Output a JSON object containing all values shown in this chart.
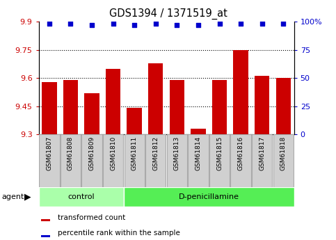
{
  "title": "GDS1394 / 1371519_at",
  "samples": [
    "GSM61807",
    "GSM61808",
    "GSM61809",
    "GSM61810",
    "GSM61811",
    "GSM61812",
    "GSM61813",
    "GSM61814",
    "GSM61815",
    "GSM61816",
    "GSM61817",
    "GSM61818"
  ],
  "transformed_counts": [
    9.58,
    9.59,
    9.52,
    9.65,
    9.44,
    9.68,
    9.59,
    9.33,
    9.59,
    9.75,
    9.61,
    9.6
  ],
  "percentile_ranks": [
    98,
    98,
    97,
    98,
    97,
    98,
    97,
    97,
    98,
    98,
    98,
    98
  ],
  "bar_color": "#cc0000",
  "dot_color": "#0000cc",
  "ylim_left": [
    9.3,
    9.9
  ],
  "ylim_right": [
    0,
    100
  ],
  "yticks_left": [
    9.3,
    9.45,
    9.6,
    9.75,
    9.9
  ],
  "yticks_right": [
    0,
    25,
    50,
    75,
    100
  ],
  "ytick_labels_right": [
    "0",
    "25",
    "50",
    "75",
    "100%"
  ],
  "grid_values": [
    9.45,
    9.6,
    9.75
  ],
  "n_control": 4,
  "control_color": "#aaffaa",
  "dpen_color": "#55ee55",
  "agent_label": "agent",
  "control_label": "control",
  "dpen_label": "D-penicillamine",
  "legend_red_label": "transformed count",
  "legend_blue_label": "percentile rank within the sample",
  "bar_width": 0.7,
  "label_box_color": "#d0d0d0",
  "label_box_edge_color": "#aaaaaa"
}
